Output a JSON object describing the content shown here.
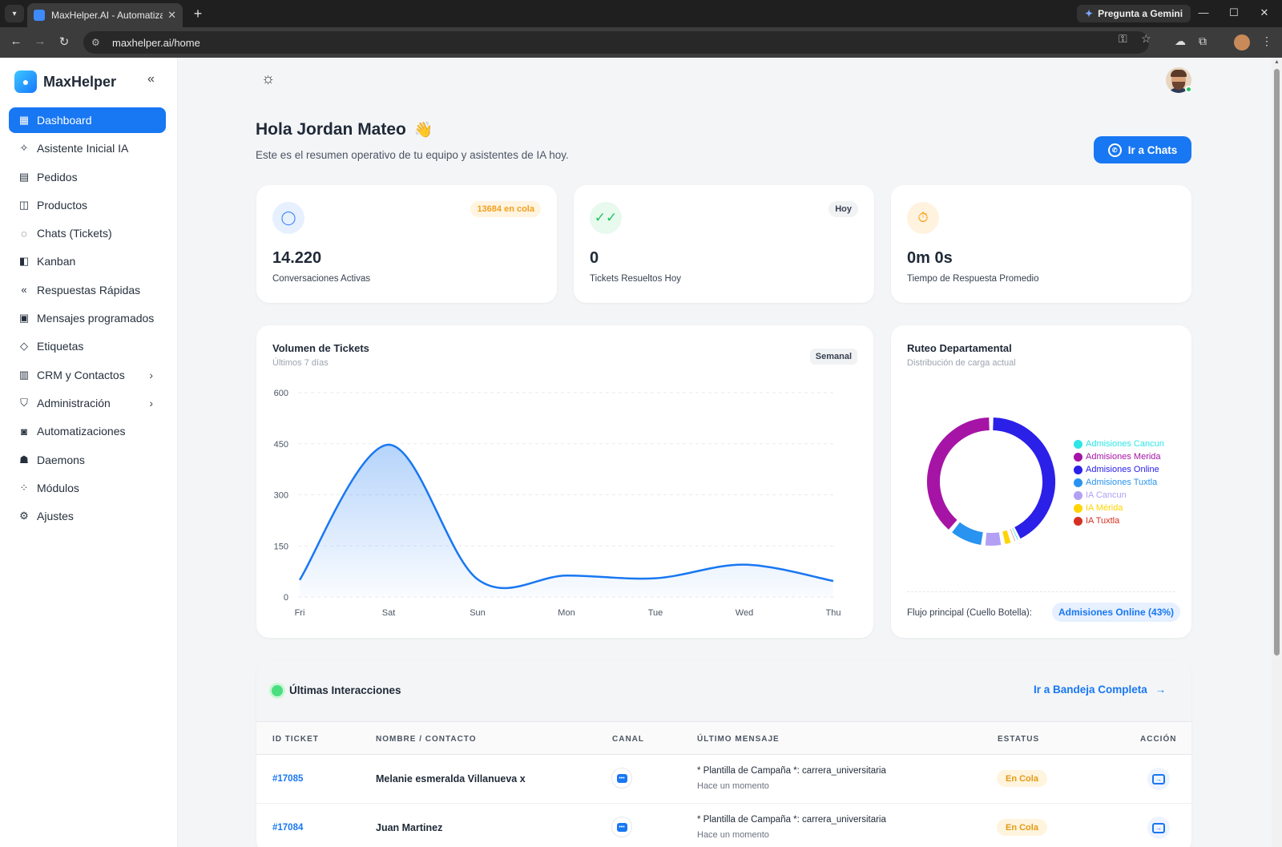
{
  "browser": {
    "tab_title": "MaxHelper.AI - Automatiza tu a",
    "url": "maxhelper.ai/home",
    "gemini_label": "Pregunta a Gemini"
  },
  "sidebar": {
    "brand": "MaxHelper",
    "items": [
      {
        "label": "Dashboard",
        "icon": "dashboard-icon",
        "active": true
      },
      {
        "label": "Asistente Inicial IA",
        "icon": "sparkle-icon"
      },
      {
        "label": "Pedidos",
        "icon": "receipt-icon"
      },
      {
        "label": "Productos",
        "icon": "bag-icon"
      },
      {
        "label": "Chats (Tickets)",
        "icon": "whatsapp-icon"
      },
      {
        "label": "Kanban",
        "icon": "kanban-icon"
      },
      {
        "label": "Respuestas Rápidas",
        "icon": "reply-all-icon"
      },
      {
        "label": "Mensajes programados",
        "icon": "calendar-icon"
      },
      {
        "label": "Etiquetas",
        "icon": "tag-icon"
      },
      {
        "label": "CRM y Contactos",
        "icon": "contacts-icon",
        "has_submenu": true
      },
      {
        "label": "Administración",
        "icon": "shield-user-icon",
        "has_submenu": true
      },
      {
        "label": "Automatizaciones",
        "icon": "robot-icon"
      },
      {
        "label": "Daemons",
        "icon": "daemon-icon"
      },
      {
        "label": "Módulos",
        "icon": "modules-icon"
      },
      {
        "label": "Ajustes",
        "icon": "gear-icon"
      }
    ]
  },
  "header": {
    "greeting": "Hola Jordan Mateo",
    "greeting_emoji": "👋",
    "subtitle": "Este es el resumen operativo de tu equipo y asistentes de IA hoy.",
    "chats_button": "Ir a Chats"
  },
  "stats": [
    {
      "value": "14.220",
      "label": "Conversaciones Activas",
      "badge": "13684 en cola",
      "icon": "chat-bubble-icon",
      "color": "#3b82f6"
    },
    {
      "value": "0",
      "label": "Tickets Resueltos Hoy",
      "badge": "Hoy",
      "icon": "double-check-icon",
      "color": "#22c55e"
    },
    {
      "value": "0m 0s",
      "label": "Tiempo de Respuesta Promedio",
      "badge": "",
      "icon": "stopwatch-icon",
      "color": "#f59e0b"
    }
  ],
  "volume": {
    "title": "Volumen de Tickets",
    "subtitle": "Últimos 7 días",
    "badge": "Semanal"
  },
  "ruteo": {
    "title": "Ruteo Departamental",
    "subtitle": "Distribución de carga actual",
    "flujo_label": "Flujo principal (Cuello Botella):",
    "flujo_value": "Admisiones Online (43%)"
  },
  "chart_data": [
    {
      "type": "area",
      "x": [
        "Fri",
        "Sat",
        "Sun",
        "Mon",
        "Tue",
        "Wed",
        "Thu"
      ],
      "series": [
        {
          "values": [
            50,
            447,
            52,
            63,
            55,
            95,
            47
          ]
        }
      ],
      "y_ticks": [
        0,
        150,
        300,
        450,
        600
      ],
      "ylim": [
        0,
        600
      ],
      "grid": true,
      "color": "#1877f2"
    },
    {
      "type": "pie",
      "donut": true,
      "legend_position": "right",
      "series": [
        {
          "name": "Admisiones Cancun",
          "value": 0.3,
          "color": "#2ee6e6"
        },
        {
          "name": "Admisiones Merida",
          "value": 39,
          "color": "#a614a6"
        },
        {
          "name": "Admisiones Online",
          "value": 43,
          "color": "#2b20e8"
        },
        {
          "name": "Admisiones Tuxtla",
          "value": 9,
          "color": "#2893f0"
        },
        {
          "name": "IA Cancun",
          "value": 5,
          "color": "#b3a0f5"
        },
        {
          "name": "IA Mérida",
          "value": 2.5,
          "color": "#ffd400"
        },
        {
          "name": "IA Tuxtla",
          "value": 1.2,
          "color": "#d63022"
        }
      ]
    }
  ],
  "interactions": {
    "title": "Últimas Interacciones",
    "link": "Ir a Bandeja Completa",
    "columns": [
      "ID TICKET",
      "NOMBRE / CONTACTO",
      "CANAL",
      "ÚLTIMO MENSAJE",
      "ESTATUS",
      "ACCIÓN"
    ],
    "rows": [
      {
        "id": "#17085",
        "name": "Melanie esmeralda Villanueva x",
        "canal": "webchat-icon",
        "message": "* Plantilla de Campaña *: carrera_universitaria",
        "time": "Hace un momento",
        "status": "En Cola"
      },
      {
        "id": "#17084",
        "name": "Juan Martinez",
        "canal": "webchat-icon",
        "message": "* Plantilla de Campaña *: carrera_universitaria",
        "time": "Hace un momento",
        "status": "En Cola"
      }
    ]
  }
}
